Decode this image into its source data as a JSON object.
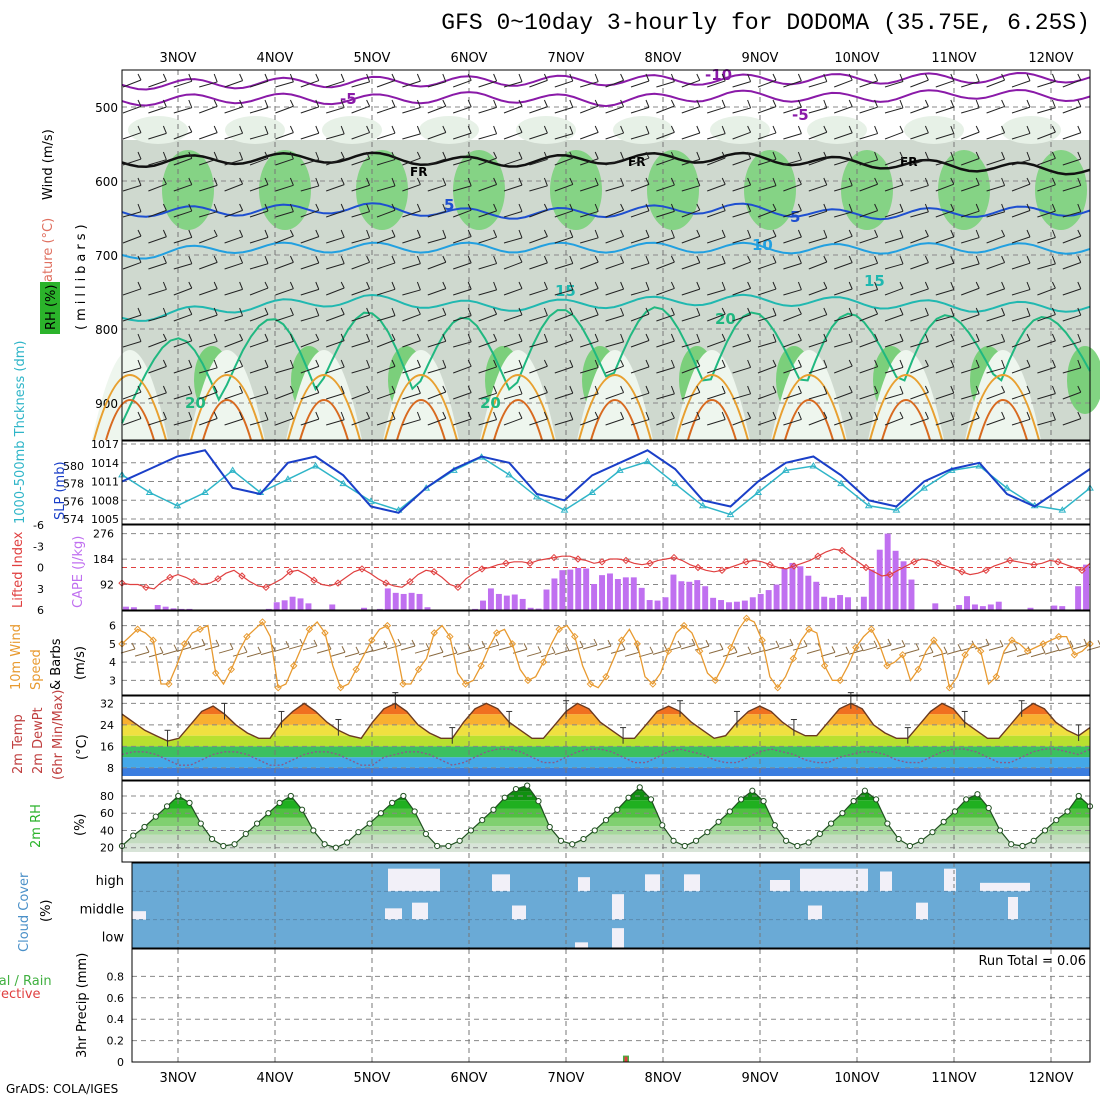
{
  "title": "GFS 0~10day 3-hourly for DODOMA (35.75E, 6.25S)",
  "footer": "GrADS: COLA/IGES",
  "run_total": "Run Total = 0.06",
  "dates": [
    "3NOV",
    "4NOV",
    "5NOV",
    "6NOV",
    "7NOV",
    "8NOV",
    "9NOV",
    "10NOV",
    "11NOV",
    "12NOV"
  ],
  "colors": {
    "rh_green": "#2bb32b",
    "temp_purple": "#8a1aa8",
    "wind_navy": "#000000",
    "slp": "#1a3fc8",
    "thick": "#2fb5c8",
    "cape": "#c070f0",
    "li": "#e04040",
    "wind10": "#e89a30",
    "precip_conv": "#e04040",
    "precip_total": "#40b040",
    "cloud": "#6aaad6",
    "cloud_clear": "#f2f0f8"
  },
  "chart_data": [
    {
      "type": "heatmap",
      "id": "upper-air",
      "ylabel_parts": [
        "Wind (m/s)",
        "Temperature (°C)",
        "RH (%)"
      ],
      "yunit": "(millibars)",
      "yticks": [
        500,
        600,
        700,
        800,
        900
      ],
      "ylim": [
        1000,
        450
      ],
      "contour_labels": [
        "-10",
        "-5",
        "-5",
        "FR",
        "FR",
        "FR",
        "5",
        "5",
        "10",
        "15",
        "15",
        "20",
        "20",
        "20"
      ],
      "isotherms": [
        {
          "label": "-10",
          "p": [
            470,
            468,
            466,
            465,
            464,
            463,
            462,
            461,
            460
          ]
        },
        {
          "label": "-5",
          "p": [
            492,
            488,
            490,
            486,
            492,
            484,
            488,
            482,
            486
          ]
        },
        {
          "label": "FR",
          "p": [
            575,
            570,
            568,
            575,
            570,
            568,
            575,
            580,
            585
          ]
        },
        {
          "label": "5",
          "p": [
            642,
            640,
            636,
            645,
            642,
            636,
            646,
            642,
            640
          ]
        },
        {
          "label": "10",
          "p": [
            700,
            690,
            690,
            690,
            690,
            690,
            692,
            690,
            692
          ]
        },
        {
          "label": "15",
          "p": [
            785,
            770,
            760,
            770,
            765,
            760,
            764,
            770,
            770
          ]
        },
        {
          "label": "20",
          "p": [
            880,
            840,
            830,
            840,
            820,
            830,
            830,
            830,
            830
          ]
        }
      ]
    },
    {
      "type": "line",
      "id": "slp-thickness",
      "ylabel_left": "1000-500mb Thckness (dm)",
      "ylabel_right": "SLP (mb)",
      "yticks_left": [
        574,
        576,
        578,
        580
      ],
      "yticks_right": [
        1005,
        1008,
        1011,
        1014,
        1017
      ],
      "series": [
        {
          "name": "SLP (mb)",
          "values": [
            1011,
            1013,
            1015,
            1016,
            1010,
            1009,
            1014,
            1015,
            1012,
            1007,
            1006,
            1010,
            1013,
            1015,
            1014,
            1009,
            1008,
            1012,
            1014,
            1016,
            1013,
            1008,
            1007,
            1011,
            1014,
            1015,
            1012,
            1008,
            1007,
            1011,
            1013,
            1014,
            1009,
            1007,
            1010,
            1013
          ]
        },
        {
          "name": "Thickness (dm)",
          "values": [
            579,
            577,
            575.5,
            577,
            579.5,
            577,
            578.5,
            580,
            578,
            576,
            575,
            577.5,
            579.5,
            581,
            579,
            576.5,
            575,
            577,
            579.5,
            580.5,
            578,
            575.5,
            574.5,
            577,
            579.5,
            580,
            578,
            575.5,
            575,
            577.5,
            579.5,
            580,
            577.5,
            575.5,
            575,
            577.5
          ]
        }
      ]
    },
    {
      "type": "bar",
      "id": "cape-li",
      "ylabel_left": "Lifted Index",
      "ylabel_right": "CAPE (J/kg)",
      "yticks_left": [
        "-6",
        "-3",
        "0",
        "3",
        "6"
      ],
      "yticks_right": [
        92,
        184,
        276
      ],
      "cape_values": [
        12,
        10,
        0,
        0,
        18,
        12,
        6,
        4,
        4,
        0,
        0,
        0,
        0,
        0,
        0,
        0,
        0,
        0,
        4,
        28,
        35,
        48,
        42,
        24,
        0,
        0,
        20,
        0,
        0,
        0,
        8,
        0,
        4,
        78,
        62,
        58,
        62,
        58,
        10,
        0,
        0,
        0,
        0,
        0,
        4,
        34,
        78,
        58,
        52,
        56,
        40,
        8,
        5,
        74,
        114,
        144,
        146,
        152,
        150,
        94,
        126,
        132,
        112,
        118,
        118,
        80,
        36,
        34,
        46,
        128,
        104,
        102,
        108,
        86,
        44,
        36,
        28,
        30,
        34,
        46,
        58,
        72,
        92,
        150,
        170,
        158,
        124,
        102,
        48,
        44,
        54,
        46,
        0,
        48,
        146,
        218,
        276,
        214,
        176,
        110,
        0,
        0,
        24,
        0,
        0,
        18,
        50,
        20,
        14,
        20,
        30,
        0,
        0,
        0,
        8,
        0,
        0,
        16,
        14,
        0,
        86,
        164
      ],
      "li_values": [
        2.2,
        2.4,
        2.4,
        2.8,
        3.0,
        2.0,
        1.4,
        1.0,
        1.4,
        2.0,
        2.4,
        2.2,
        1.6,
        0.8,
        0.4,
        1.2,
        2.0,
        2.6,
        2.8,
        2.2,
        1.6,
        0.6,
        0.4,
        1.0,
        1.8,
        2.4,
        2.6,
        2.2,
        1.4,
        0.6,
        0.2,
        0.8,
        1.6,
        2.2,
        2.6,
        2.8,
        2.0,
        1.0,
        0.4,
        0.6,
        1.4,
        2.4,
        2.8,
        1.6,
        0.8,
        0.2,
        0.0,
        -0.4,
        -0.6,
        -0.8,
        -0.8,
        -0.6,
        -1.0,
        -1.2,
        -1.4,
        -1.6,
        -1.6,
        -1.2,
        -1.0,
        -0.6,
        -0.8,
        -1.2,
        -1.2,
        -1.0,
        -0.6,
        -0.4,
        -0.6,
        -1.0,
        -1.2,
        -1.4,
        -1.0,
        -0.4,
        0.0,
        0.4,
        0.6,
        0.4,
        0.0,
        -0.4,
        -0.8,
        -1.0,
        -0.8,
        -0.4,
        0.0,
        0.2,
        -0.2,
        -0.6,
        -1.0,
        -1.6,
        -2.2,
        -2.6,
        -2.4,
        -1.6,
        -0.8,
        0.0,
        0.6,
        1.2,
        1.0,
        0.4,
        -0.2,
        -0.8,
        -1.2,
        -1.0,
        -0.6,
        -0.2,
        0.2,
        0.6,
        1.0,
        0.8,
        0.4,
        -0.2,
        -0.6,
        -1.0,
        -0.8,
        -0.6,
        -0.4,
        -0.6,
        -1.0,
        -0.8,
        -0.4,
        0.0,
        0.4,
        -0.6
      ]
    },
    {
      "type": "line",
      "id": "wind10",
      "ylabel": "10m Wind Speed & Barbs (m/s)",
      "yticks": [
        3,
        4,
        5,
        6
      ],
      "values": [
        5.0,
        5.4,
        5.8,
        5.6,
        5.2,
        2.8,
        2.8,
        3.8,
        5.0,
        5.6,
        5.8,
        6.0,
        3.4,
        2.8,
        3.6,
        4.6,
        5.4,
        5.8,
        6.2,
        5.4,
        2.6,
        2.8,
        3.8,
        4.8,
        5.8,
        6.2,
        5.6,
        3.8,
        2.6,
        2.8,
        3.6,
        4.4,
        5.2,
        5.8,
        6.0,
        5.0,
        2.8,
        2.8,
        3.6,
        4.2,
        5.6,
        6.0,
        5.4,
        3.4,
        2.8,
        3.0,
        3.8,
        4.8,
        5.6,
        5.8,
        5.0,
        3.6,
        3.0,
        3.2,
        4.0,
        5.0,
        5.8,
        6.0,
        5.4,
        3.8,
        2.8,
        2.6,
        3.2,
        4.2,
        5.2,
        5.8,
        5.0,
        3.2,
        2.8,
        3.4,
        4.6,
        5.6,
        6.0,
        5.6,
        4.6,
        3.4,
        3.0,
        3.8,
        4.8,
        5.8,
        6.4,
        6.2,
        5.2,
        3.2,
        2.6,
        3.2,
        4.2,
        5.2,
        5.8,
        5.6,
        3.8,
        3.0,
        3.0,
        3.8,
        4.8,
        5.4,
        5.8,
        5.0,
        3.8,
        4.0,
        4.4,
        3.0,
        3.6,
        4.6,
        5.2,
        4.6,
        2.6,
        3.2,
        4.4,
        5.0,
        4.6,
        2.8,
        3.2,
        4.6,
        5.2,
        5.0,
        4.6,
        4.8,
        5.0,
        5.2,
        5.4,
        5.4,
        4.4,
        4.6,
        5.0
      ]
    },
    {
      "type": "area",
      "id": "temp-dewpt",
      "ylabel": "2m Temp 2m DewPt (6hr Min/Max) (°C)",
      "yticks": [
        8,
        16,
        24,
        32
      ],
      "temp_values": [
        28,
        25,
        22,
        20,
        18,
        19,
        24,
        29,
        31,
        28,
        24,
        21,
        19,
        19,
        25,
        29,
        32,
        29,
        25,
        22,
        20,
        19,
        25,
        30,
        32,
        29,
        24,
        21,
        19,
        19,
        25,
        30,
        32,
        30,
        25,
        22,
        19,
        19,
        24,
        29,
        32,
        30,
        25,
        22,
        19,
        19,
        24,
        29,
        31,
        29,
        25,
        22,
        19,
        20,
        25,
        29,
        31,
        29,
        25,
        22,
        20,
        20,
        25,
        30,
        32,
        30,
        24,
        21,
        19,
        19,
        24,
        29,
        32,
        30,
        25,
        22,
        19,
        19,
        24,
        29,
        32,
        30,
        25,
        22,
        20,
        23
      ],
      "dewpt_values": [
        13,
        14,
        14,
        13,
        11,
        9,
        9,
        11,
        13,
        14,
        14,
        13,
        11,
        9,
        9,
        11,
        13,
        14,
        14,
        13,
        11,
        9,
        9,
        12,
        13,
        14,
        14,
        13,
        11,
        9,
        10,
        12,
        14,
        15,
        15,
        14,
        12,
        10,
        10,
        12,
        14,
        15,
        15,
        14,
        12,
        10,
        10,
        12,
        14,
        15,
        14,
        13,
        11,
        10,
        10,
        12,
        14,
        15,
        14,
        13,
        11,
        10,
        10,
        12,
        13,
        14,
        14,
        13,
        11,
        10,
        10,
        12,
        14,
        15,
        15,
        14,
        12,
        10,
        10,
        12,
        14,
        15,
        15,
        14,
        13,
        15
      ]
    },
    {
      "type": "area",
      "id": "rh2m",
      "ylabel": "2m RH (%)",
      "yticks": [
        20,
        40,
        60,
        80
      ],
      "values": [
        22,
        34,
        44,
        56,
        68,
        80,
        72,
        48,
        30,
        22,
        24,
        36,
        48,
        60,
        72,
        80,
        64,
        40,
        24,
        20,
        26,
        38,
        48,
        60,
        72,
        80,
        62,
        36,
        22,
        22,
        28,
        40,
        52,
        64,
        78,
        88,
        92,
        74,
        44,
        28,
        24,
        30,
        40,
        52,
        64,
        78,
        90,
        76,
        46,
        28,
        22,
        28,
        38,
        50,
        62,
        76,
        86,
        74,
        46,
        28,
        22,
        26,
        36,
        48,
        60,
        74,
        86,
        76,
        48,
        30,
        22,
        28,
        38,
        50,
        62,
        76,
        82,
        66,
        40,
        24,
        22,
        28,
        40,
        52,
        62,
        80,
        68
      ]
    },
    {
      "type": "table",
      "id": "cloud-cover",
      "ylabel": "Cloud Cover (%)",
      "levels": [
        "high",
        "middle",
        "low"
      ]
    },
    {
      "type": "bar",
      "id": "precip",
      "ylabel_parts": [
        "Total / Rain",
        "Convective"
      ],
      "ylabel": "3hr Precip (mm)",
      "yticks": [
        "0",
        "0.2",
        "0.4",
        "0.6",
        "0.8"
      ],
      "ylim": [
        0,
        1.0
      ],
      "bars": [
        {
          "date": "7NOV",
          "step": 41,
          "value": 0.06
        }
      ]
    }
  ]
}
